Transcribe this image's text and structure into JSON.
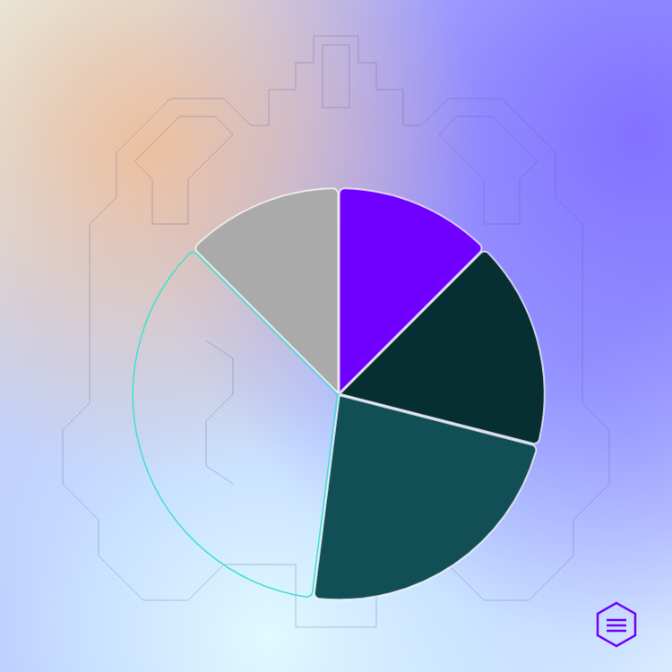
{
  "chart_data": {
    "type": "pie",
    "values": [
      12.5,
      12.5,
      16.5,
      23,
      35.5
    ],
    "colors": [
      "#aaaaaa",
      "#6f00ff",
      "#072e31",
      "#124e55",
      "rgba(0,0,0,0)"
    ]
  }
}
